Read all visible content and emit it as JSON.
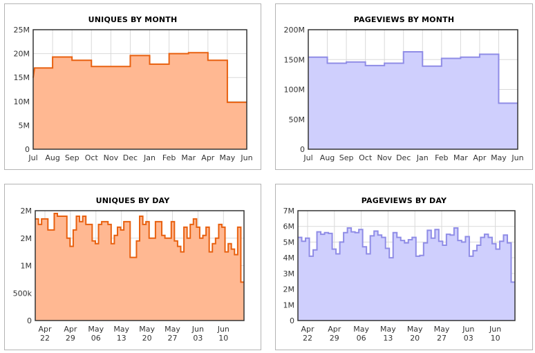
{
  "colors": {
    "orange_stroke": "#e8600f",
    "orange_fill": "#ffb892",
    "purple_stroke": "#8f8ce6",
    "purple_fill": "#cfcffd",
    "grid": "#d9d9d9",
    "frame": "#333333"
  },
  "chart_data": [
    {
      "type": "area",
      "title": "UNIQUES BY MONTH",
      "x_tick_labels": [
        "Jul",
        "Aug",
        "Sep",
        "Oct",
        "Nov",
        "Dec",
        "Jan",
        "Feb",
        "Mar",
        "Apr",
        "May",
        "Jun"
      ],
      "y_tick_labels": [
        "0",
        "5M",
        "10M",
        "15M",
        "20M",
        "25M"
      ],
      "ylim": [
        0,
        25000000
      ],
      "grid": true,
      "values": [
        17000000,
        19300000,
        18600000,
        17300000,
        17300000,
        19600000,
        17800000,
        20000000,
        20200000,
        18600000,
        9800000
      ]
    },
    {
      "type": "area",
      "title": "PAGEVIEWS BY MONTH",
      "x_tick_labels": [
        "Jul",
        "Aug",
        "Sep",
        "Oct",
        "Nov",
        "Dec",
        "Jan",
        "Feb",
        "Mar",
        "Apr",
        "May",
        "Jun"
      ],
      "y_tick_labels": [
        "0",
        "50M",
        "100M",
        "150M",
        "200M"
      ],
      "ylim": [
        0,
        200000000
      ],
      "grid": true,
      "values": [
        154000000,
        144000000,
        146000000,
        140000000,
        144000000,
        163000000,
        139000000,
        152000000,
        154000000,
        159000000,
        77000000
      ]
    },
    {
      "type": "area",
      "title": "UNIQUES BY DAY",
      "x_tick_labels": [
        "Apr\n22",
        "Apr\n29",
        "May\n06",
        "May\n13",
        "May\n20",
        "May\n27",
        "Jun\n03",
        "Jun\n10"
      ],
      "y_tick_labels": [
        "0",
        "500k",
        "1M",
        "2M",
        "2M"
      ],
      "ylim": [
        0,
        2000000
      ],
      "grid": true,
      "values": [
        1850000,
        1750000,
        1850000,
        1850000,
        1650000,
        1650000,
        1950000,
        1900000,
        1900000,
        1900000,
        1500000,
        1350000,
        1650000,
        1900000,
        1800000,
        1900000,
        1750000,
        1750000,
        1450000,
        1400000,
        1750000,
        1800000,
        1800000,
        1750000,
        1400000,
        1550000,
        1700000,
        1650000,
        1800000,
        1800000,
        1150000,
        1150000,
        1450000,
        1900000,
        1750000,
        1800000,
        1500000,
        1500000,
        1800000,
        1800000,
        1550000,
        1500000,
        1500000,
        1800000,
        1450000,
        1350000,
        1250000,
        1700000,
        1500000,
        1750000,
        1850000,
        1700000,
        1500000,
        1550000,
        1700000,
        1250000,
        1400000,
        1500000,
        1750000,
        1700000,
        1250000,
        1400000,
        1300000,
        1200000,
        1700000,
        700000
      ]
    },
    {
      "type": "area",
      "title": "PAGEVIEWS BY DAY",
      "x_tick_labels": [
        "Apr\n22",
        "Apr\n29",
        "May\n06",
        "May\n13",
        "May\n20",
        "May\n27",
        "Jun\n03",
        "Jun\n10"
      ],
      "y_tick_labels": [
        "0",
        "1M",
        "2M",
        "3M",
        "4M",
        "5M",
        "6M",
        "7M"
      ],
      "ylim": [
        0,
        7000000
      ],
      "grid": true,
      "values": [
        5300000,
        5050000,
        5250000,
        4100000,
        4500000,
        5650000,
        5500000,
        5600000,
        5550000,
        4550000,
        4250000,
        5000000,
        5600000,
        5900000,
        5650000,
        5600000,
        5800000,
        4700000,
        4250000,
        5400000,
        5700000,
        5450000,
        5300000,
        4600000,
        4000000,
        5600000,
        5300000,
        5100000,
        4950000,
        5150000,
        5300000,
        4100000,
        4150000,
        4950000,
        5750000,
        5250000,
        5800000,
        5050000,
        4800000,
        5500000,
        5450000,
        5900000,
        5100000,
        5000000,
        5350000,
        4100000,
        4450000,
        4800000,
        5300000,
        5500000,
        5300000,
        4900000,
        4550000,
        5050000,
        5450000,
        4950000,
        2450000
      ]
    }
  ]
}
